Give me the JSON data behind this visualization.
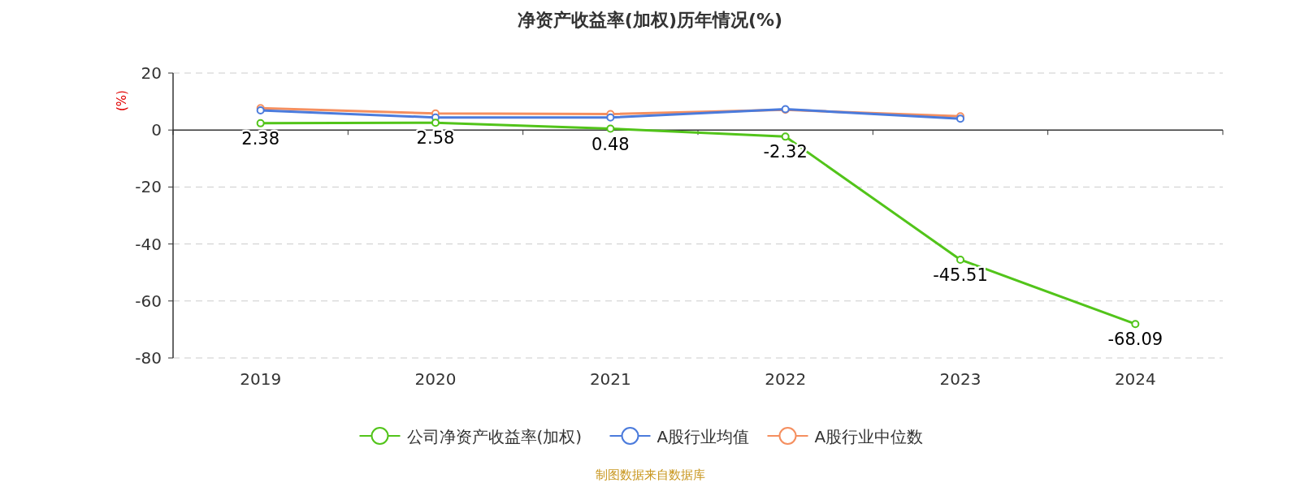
{
  "chart_data": {
    "type": "line",
    "title": "净资产收益率(加权)历年情况(%)",
    "ylabel": "(%)",
    "annotations": [
      "制图数据来自数据库"
    ],
    "categories": [
      "2019",
      "2020",
      "2021",
      "2022",
      "2023",
      "2024"
    ],
    "series": [
      {
        "name": "公司净资产收益率(加权)",
        "color": "#52c41a",
        "values": [
          2.38,
          2.58,
          0.48,
          -2.32,
          -45.51,
          -68.09
        ],
        "value_labels": [
          "2.38",
          "2.58",
          "0.48",
          "-2.32",
          "-45.51",
          "-68.09"
        ]
      },
      {
        "name": "A股行业均值",
        "color": "#4b7bdc",
        "values": [
          6.9,
          4.4,
          4.4,
          7.3,
          4.0,
          null
        ]
      },
      {
        "name": "A股行业中位数",
        "color": "#f58f5f",
        "values": [
          7.7,
          5.8,
          5.6,
          7.1,
          4.8,
          null
        ]
      }
    ],
    "ylim": [
      -80,
      20
    ],
    "yticks": [
      -80,
      -60,
      -40,
      -20,
      0,
      20
    ],
    "grid": "y",
    "legend": "bottom",
    "marker": "circle",
    "line_style": "solid"
  }
}
